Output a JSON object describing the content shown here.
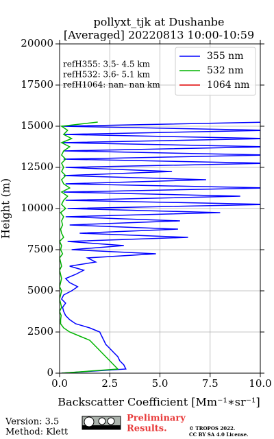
{
  "chart_data": {
    "type": "line",
    "title": "pollyxt_tjk at Dushanbe",
    "subtitle": "[Averaged] 20220813 10:00-10:59",
    "xlabel": "Backscatter Coefficient [Mm⁻¹∗sr⁻¹]",
    "ylabel": "Height (m)",
    "annotations": [
      "refH355:  3.5- 4.5 km",
      "refH532:  3.6- 5.1 km",
      "refH1064:  nan- nan km"
    ],
    "xlim": [
      0,
      10
    ],
    "ylim": [
      0,
      20000
    ],
    "xticks": [
      {
        "value": 0,
        "label": "0.0"
      },
      {
        "value": 2.5,
        "label": "2.5"
      },
      {
        "value": 5,
        "label": "5.0"
      },
      {
        "value": 7.5,
        "label": "7.5"
      },
      {
        "value": 10,
        "label": "10.0"
      }
    ],
    "yticks": [
      0,
      2500,
      5000,
      7500,
      10000,
      12500,
      15000,
      17500,
      20000
    ],
    "grid": true,
    "legend": "upper right",
    "y": [
      0,
      250,
      500,
      750,
      1000,
      1250,
      1500,
      1750,
      2000,
      2250,
      2500,
      2750,
      3000,
      3250,
      3500,
      3750,
      4000,
      4250,
      4500,
      4750,
      5000,
      5250,
      5500,
      5750,
      6000,
      6250,
      6500,
      6750,
      7000,
      7250,
      7500,
      7750,
      8000,
      8250,
      8500,
      8750,
      9000,
      9250,
      9500,
      9750,
      10000,
      10250,
      10500,
      10750,
      11000,
      11250,
      11500,
      11750,
      12000,
      12250,
      12500,
      12750,
      13000,
      13250,
      13500,
      13750,
      14000,
      14250,
      14500,
      14750,
      15000,
      15250
    ],
    "series": [
      {
        "name": "355 nm",
        "color": "#0000ff",
        "values": [
          0.1,
          3.3,
          3.2,
          3.0,
          2.9,
          2.7,
          2.5,
          2.3,
          2.2,
          2.1,
          2.0,
          1.5,
          0.8,
          0.5,
          0.3,
          0.2,
          0.15,
          0.3,
          0.1,
          0.2,
          0.6,
          0.9,
          0.5,
          0.3,
          0.8,
          1.2,
          0.5,
          1.8,
          1.4,
          4.8,
          0.6,
          3.2,
          0.4,
          6.4,
          1.0,
          5.9,
          0.5,
          6.0,
          0.3,
          8.0,
          0.4,
          10.5,
          0.3,
          9.0,
          0.2,
          10.5,
          0.3,
          7.3,
          0.2,
          5.6,
          0.3,
          10.5,
          0.2,
          10.5,
          0.2,
          10.5,
          0.1,
          10.5,
          0.2,
          10.5,
          0.1,
          10.5
        ]
      },
      {
        "name": "532 nm",
        "color": "#00b400",
        "values": [
          0.1,
          2.9,
          2.7,
          2.5,
          2.3,
          2.1,
          1.9,
          1.7,
          1.5,
          1.0,
          0.5,
          0.2,
          0.05,
          0.05,
          0.08,
          0.0,
          0.1,
          0.05,
          0.0,
          0.05,
          0.1,
          0.0,
          0.05,
          0.1,
          0.05,
          0.0,
          0.1,
          0.05,
          0.0,
          0.15,
          0.05,
          0.1,
          0.0,
          0.2,
          0.1,
          0.05,
          0.15,
          0.1,
          0.2,
          0.05,
          0.3,
          0.1,
          0.2,
          0.4,
          0.1,
          0.5,
          0.2,
          0.1,
          0.3,
          0.1,
          0.2,
          0.1,
          0.3,
          0.1,
          0.2,
          0.5,
          0.1,
          0.6,
          0.2,
          0.4,
          0.1,
          1.9
        ]
      },
      {
        "name": "1064 nm",
        "color": "#e00000",
        "values": [
          null,
          null,
          null,
          null,
          null,
          null,
          null,
          null,
          null,
          null,
          null,
          null,
          null,
          null,
          null,
          null,
          null,
          null,
          null,
          null,
          null,
          null,
          null,
          null,
          null,
          null,
          null,
          null,
          null,
          null,
          null,
          null,
          null,
          null,
          null,
          null,
          null,
          null,
          null,
          null,
          null,
          null,
          null,
          null,
          null,
          null,
          null,
          null,
          null,
          null,
          null,
          null,
          null,
          null,
          null,
          null,
          null,
          null,
          null,
          null,
          null,
          null
        ]
      }
    ]
  },
  "footer": {
    "version": "Version: 3.5",
    "method": "Method: Klett",
    "preliminary": [
      "Preliminary",
      "Results."
    ],
    "copyright": "© TROPOS 2022.",
    "license": "CC BY SA 4.0 License."
  }
}
